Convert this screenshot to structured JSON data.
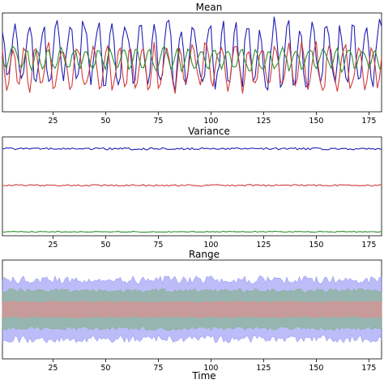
{
  "chart_data": [
    {
      "type": "line",
      "title": "Mean",
      "xlim": [
        1,
        181
      ],
      "ylim": [
        -3,
        3
      ],
      "xticks": [
        25,
        50,
        75,
        100,
        125,
        150,
        175
      ],
      "series_colors": [
        "#1f1fb5",
        "#d23a3a",
        "#2f8f2f"
      ],
      "series_amplitudes": [
        2.3,
        1.6,
        0.8
      ],
      "series_offsets": [
        0.5,
        -0.3,
        0.2
      ],
      "series_values": []
    },
    {
      "type": "line",
      "title": "Variance",
      "xlim": [
        1,
        181
      ],
      "ylim": [
        0,
        1
      ],
      "xticks": [
        25,
        50,
        75,
        100,
        125,
        150,
        175
      ],
      "series_colors": [
        "#1f1fb5",
        "#d23a3a",
        "#2f8f2f"
      ],
      "series_levels": [
        0.88,
        0.51,
        0.04
      ],
      "series_noise": [
        0.01,
        0.008,
        0.005
      ]
    },
    {
      "type": "area",
      "title": "Range",
      "xlim": [
        1,
        181
      ],
      "ylim": [
        -3,
        3
      ],
      "xticks": [
        25,
        50,
        75,
        100,
        125,
        150,
        175
      ],
      "xlabel": "Time",
      "band_colors": [
        "#8f8ff5",
        "#7fb07f",
        "#e88a8a"
      ],
      "band_half_widths": [
        1.8,
        1.15,
        0.45
      ],
      "band_noise": [
        0.25,
        0.12,
        0.06
      ]
    }
  ]
}
